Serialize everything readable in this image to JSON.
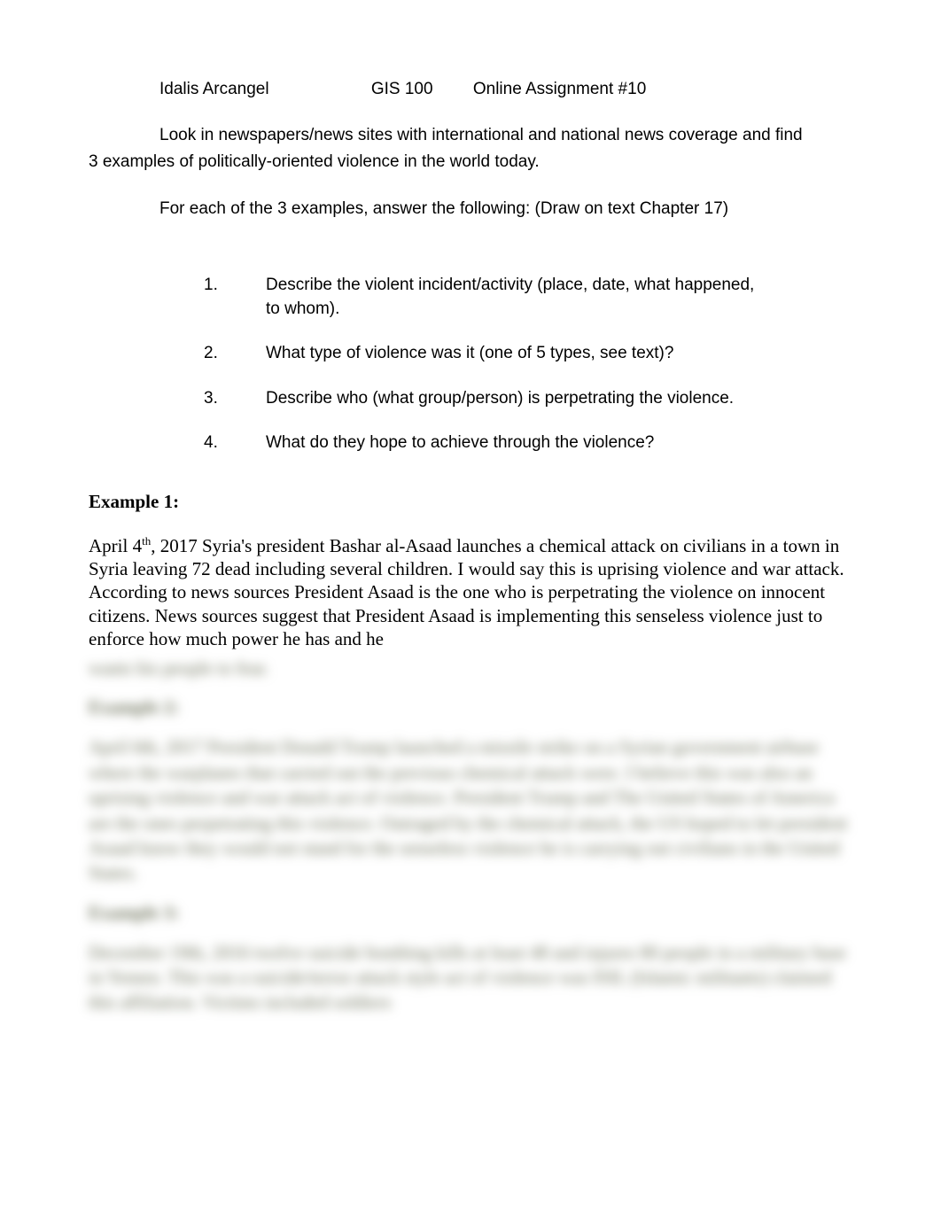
{
  "header": {
    "name": "Idalis Arcangel",
    "course": "GIS  100",
    "assignment": "Online Assignment #10"
  },
  "intro": {
    "line1_prefix": "Look in newspapers/news sites with international and national news coverage and find",
    "line2": "3 examples of politically-oriented violence in the world today.",
    "line3": "For each of the 3 examples, answer the following: (Draw on text Chapter 17)"
  },
  "questions": [
    {
      "num": "1.",
      "text": "Describe the violent incident/activity  (place, date, what happened,\nto whom)."
    },
    {
      "num": "2.",
      "text": "What type of violence was it (one of 5 types, see  text)?"
    },
    {
      "num": "3.",
      "text": "Describe who  (what group/person) is perpetrating the violence."
    },
    {
      "num": "4.",
      "text": "What do they hope to achieve through the violence?"
    }
  ],
  "example1": {
    "heading": "Example 1:",
    "body_prefix": "April 4",
    "body_sup": "th",
    "body_rest": ", 2017 Syria's president Bashar al-Asaad launches a chemical attack on civilians in a town in Syria leaving 72 dead including several children. I would say this is uprising violence and war attack. According to news sources President Asaad is the one who is perpetrating the violence on innocent citizens. News sources suggest that President Asaad is implementing this senseless violence just to enforce how much power he has and he"
  },
  "blurred": {
    "tail": "wants his people to fear.",
    "h2": "Example 2:",
    "p2": "April 6th, 2017 President Donald Trump launched a missile strike on a Syrian government airbase where the warplanes that carried out the previous chemical attack were. I believe this was also an uprising violence and war attack act of violence. President Trump and The United States of America are the ones perpetrating this violence. Outraged by the chemical attack, the US hoped to let president Asaad know they would not stand for the senseless violence he is carrying out civilians in the United States.",
    "h3": "Example 3:",
    "p3": "December 19th, 2016 twelve suicide bombing kills at least 48 and injures 80 people in a military base in Yemen. This was a suicide/terror attack style act of violence was ISIL (Islamic militants) claimed this affiliation. Victims included soldiers"
  }
}
